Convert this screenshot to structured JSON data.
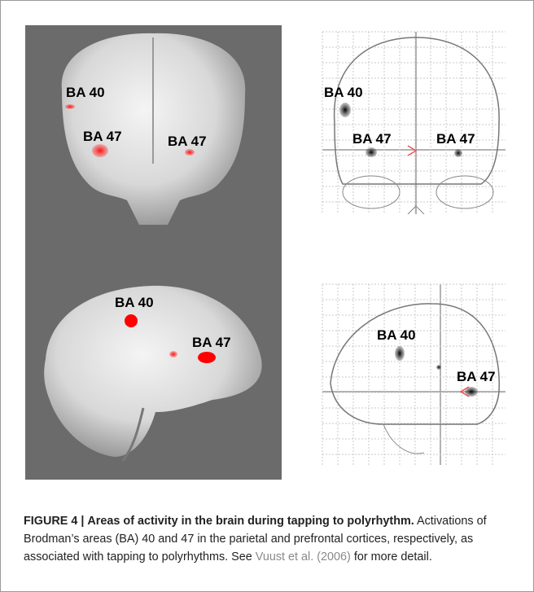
{
  "panels": [
    {
      "labels": [
        "BA 40",
        "BA 47",
        "BA 47"
      ]
    },
    {
      "labels": [
        "BA 40",
        "BA 47"
      ]
    },
    {
      "labels": [
        "BA 40",
        "BA 47",
        "BA 47"
      ]
    },
    {
      "labels": [
        "BA 40",
        "BA 47"
      ]
    }
  ],
  "caption": {
    "label": "FIGURE 4 |",
    "title": "Areas of activity in the brain during tapping to polyrhythm.",
    "text": "Activations of Brodman’s areas (BA) 40 and 47 in the parietal and prefrontal cortices, respectively, as associated with tapping to polyrhythms. See",
    "link": "Vuust et al. (2006)",
    "text_after": "for more detail."
  }
}
